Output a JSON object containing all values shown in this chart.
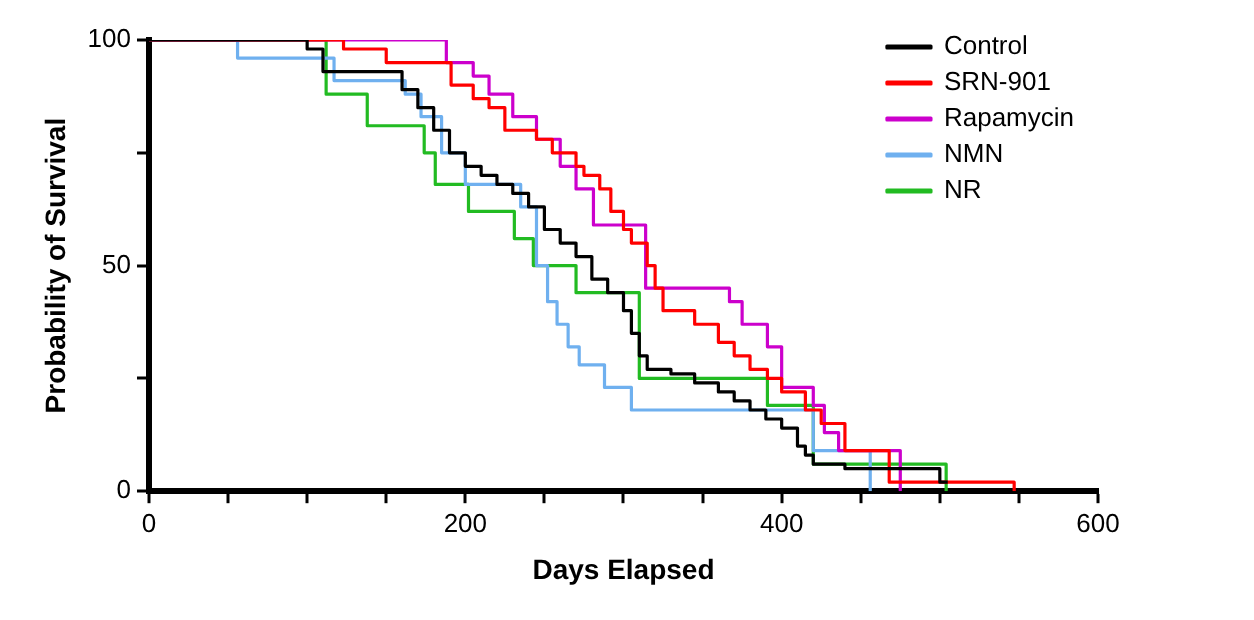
{
  "chart_data": {
    "type": "step",
    "xlabel": "Days Elapsed",
    "ylabel": "Probability of Survival",
    "xlim": [
      0,
      600
    ],
    "ylim": [
      0,
      100
    ],
    "xticks": [
      0,
      {
        "value": 50,
        "label": null
      },
      {
        "value": 100,
        "label": null
      },
      {
        "value": 150,
        "label": null
      },
      200,
      {
        "value": 250,
        "label": null
      },
      {
        "value": 300,
        "label": null
      },
      {
        "value": 350,
        "label": null
      },
      400,
      {
        "value": 450,
        "label": null
      },
      {
        "value": 500,
        "label": null
      },
      {
        "value": 550,
        "label": null
      },
      600
    ],
    "yticks": [
      0,
      {
        "value": 25,
        "label": null
      },
      50,
      {
        "value": 75,
        "label": null
      },
      100
    ],
    "grid": false,
    "legend": "top right",
    "series": [
      {
        "name": "Control",
        "color": "#000000",
        "x": [
          0,
          100,
          110,
          160,
          170,
          180,
          190,
          200,
          210,
          220,
          230,
          240,
          250,
          260,
          270,
          280,
          290,
          300,
          305,
          310,
          315,
          330,
          345,
          360,
          370,
          380,
          390,
          400,
          410,
          415,
          420,
          440,
          500,
          505
        ],
        "values": [
          100,
          98,
          93,
          89,
          85,
          80,
          75,
          72,
          70,
          68,
          66,
          63,
          58,
          55,
          52,
          47,
          44,
          40,
          35,
          30,
          27,
          26,
          24,
          22,
          20,
          18,
          16,
          14,
          10,
          8,
          6,
          5,
          2,
          2
        ]
      },
      {
        "name": "SRN-901",
        "color": "#ff0000",
        "x": [
          0,
          123,
          150,
          191,
          205,
          215,
          225,
          245,
          255,
          270,
          275,
          285,
          292,
          300,
          305,
          315,
          320,
          325,
          345,
          360,
          370,
          380,
          391,
          400,
          415,
          425,
          440,
          468,
          547
        ],
        "values": [
          100,
          98,
          95,
          90,
          87,
          85,
          80,
          78,
          75,
          72,
          70,
          67,
          62,
          58,
          55,
          50,
          45,
          40,
          37,
          33,
          30,
          27,
          25,
          22,
          18,
          15,
          9,
          2,
          0
        ]
      },
      {
        "name": "Rapamycin",
        "color": "#cc00cc",
        "x": [
          0,
          188,
          205,
          215,
          230,
          245,
          260,
          270,
          281,
          314,
          367,
          375,
          391,
          400,
          420,
          427,
          436,
          475
        ],
        "values": [
          100,
          95,
          92,
          88,
          83,
          78,
          72,
          67,
          59,
          45,
          42,
          37,
          32,
          23,
          19,
          13,
          9,
          0
        ]
      },
      {
        "name": "NMN",
        "color": "#6fb0ef",
        "x": [
          0,
          56,
          117,
          162,
          172,
          185,
          200,
          235,
          245,
          252,
          258,
          265,
          272,
          288,
          305,
          420,
          456
        ],
        "values": [
          100,
          96,
          91,
          88,
          83,
          75,
          68,
          63,
          50,
          42,
          37,
          32,
          28,
          23,
          18,
          9,
          0
        ]
      },
      {
        "name": "NR",
        "color": "#22bb22",
        "x": [
          0,
          112,
          138,
          174,
          181,
          202,
          231,
          243,
          270,
          310,
          391,
          420,
          504
        ],
        "values": [
          100,
          88,
          81,
          75,
          68,
          62,
          56,
          50,
          44,
          25,
          19,
          6,
          0
        ]
      }
    ]
  }
}
